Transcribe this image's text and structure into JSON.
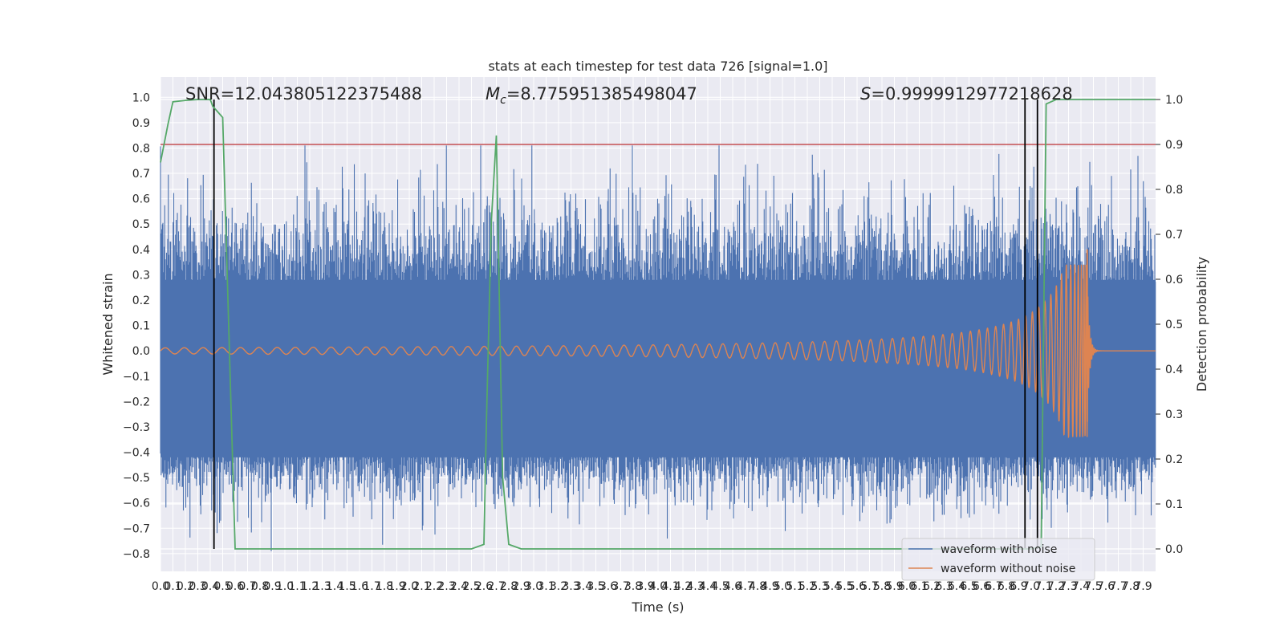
{
  "chart_data": {
    "type": "line",
    "title": "stats at each timestep for test data 726 [signal=1.0]",
    "xlabel": "Time (s)",
    "ylabel": "Whitened strain",
    "y2label": "Detection probability",
    "xlim": [
      0.0,
      8.0
    ],
    "ylim": [
      -0.87,
      1.08
    ],
    "y2lim": [
      -0.05,
      1.05
    ],
    "xticks": [
      "0.0",
      "0.1",
      "0.2",
      "0.3",
      "0.4",
      "0.5",
      "0.6",
      "0.7",
      "0.8",
      "0.9",
      "1.0",
      "1.1",
      "1.2",
      "1.3",
      "1.4",
      "1.5",
      "1.6",
      "1.7",
      "1.8",
      "1.9",
      "2.0",
      "2.1",
      "2.2",
      "2.3",
      "2.4",
      "2.5",
      "2.6",
      "2.7",
      "2.8",
      "2.9",
      "3.0",
      "3.1",
      "3.2",
      "3.3",
      "3.4",
      "3.5",
      "3.6",
      "3.7",
      "3.8",
      "3.9",
      "4.0",
      "4.1",
      "4.2",
      "4.3",
      "4.4",
      "4.5",
      "4.6",
      "4.7",
      "4.8",
      "4.9",
      "5.0",
      "5.1",
      "5.2",
      "5.3",
      "5.4",
      "5.5",
      "5.6",
      "5.7",
      "5.8",
      "5.9",
      "6.0",
      "6.1",
      "6.2",
      "6.3",
      "6.4",
      "6.5",
      "6.6",
      "6.7",
      "6.8",
      "6.9",
      "7.0",
      "7.1",
      "7.2",
      "7.3",
      "7.4",
      "7.5",
      "7.6",
      "7.7",
      "7.8",
      "7.9"
    ],
    "yticks": [
      "1.0",
      "0.9",
      "0.8",
      "0.7",
      "0.6",
      "0.5",
      "0.4",
      "0.3",
      "0.2",
      "0.1",
      "0.0",
      "−0.1",
      "−0.2",
      "−0.3",
      "−0.4",
      "−0.5",
      "−0.6",
      "−0.7",
      "−0.8"
    ],
    "y2ticks": [
      "1.0",
      "0.9",
      "0.8",
      "0.7",
      "0.6",
      "0.5",
      "0.4",
      "0.3",
      "0.2",
      "0.1",
      "0.0"
    ],
    "annotations": {
      "snr": "SNR=12.043805122375488",
      "mc_symbol": "M",
      "mc_sub": "c",
      "mc_value": "=8.775951385498047",
      "s_symbol": "S",
      "s_value": "=0.9999912977218628"
    },
    "series": [
      {
        "name": "waveform with noise",
        "color": "#4c72b0",
        "envelope_top": 0.28,
        "envelope_bottom": -0.42
      },
      {
        "name": "waveform without noise",
        "color": "#dd8452",
        "merger_time": 7.45,
        "peak_high": 0.4,
        "peak_low": -0.28
      }
    ],
    "detection_probability": {
      "color": "#55a868",
      "t": [
        0.0,
        0.06,
        0.1,
        0.2,
        0.3,
        0.4,
        0.42,
        0.5,
        0.6,
        2.5,
        2.6,
        2.62,
        2.66,
        2.7,
        2.75,
        2.8,
        2.9,
        5.0,
        7.0,
        7.08,
        7.12,
        7.2,
        7.9,
        8.0
      ],
      "p": [
        0.86,
        0.945,
        0.995,
        0.998,
        1.0,
        1.0,
        0.985,
        0.96,
        0.0,
        0.0,
        0.01,
        0.28,
        0.73,
        0.92,
        0.16,
        0.01,
        0.0,
        0.0,
        0.0,
        0.005,
        0.99,
        1.0,
        1.0,
        1.0
      ]
    },
    "threshold": {
      "value": 0.9,
      "color": "#c44e52"
    },
    "event_markers": [
      0.43,
      6.95,
      7.05
    ],
    "legend_position": "bottom-right"
  }
}
